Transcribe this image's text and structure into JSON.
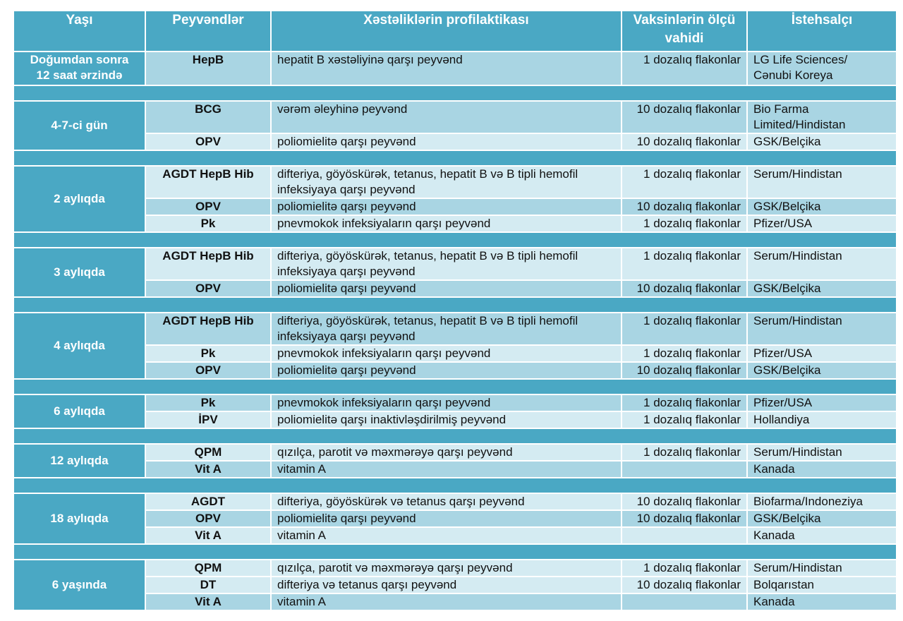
{
  "header": {
    "age": "Yaşı",
    "vaccines": "Peyvəndlər",
    "prophylaxis": "Xəstəliklərin profilaktikası",
    "unit_line1": "Vaksinlərin ölçü",
    "unit_line2": "vahidi",
    "maker": "İstehsalçı"
  },
  "groups": [
    {
      "age_line1": "Doğumdan sonra",
      "age_line2": "12 saat ərzində",
      "rows": [
        {
          "vaccine": "HepB",
          "desc_line1": "hepatit B xəstəliyinə qarşı peyvənd",
          "desc_line2": "",
          "unit": "1 dozalıq flakonlar",
          "maker_line1": "LG Life Sciences/",
          "maker_line2": "Cənubi Koreya"
        }
      ]
    },
    {
      "age_line1": "4-7-ci gün",
      "age_line2": "",
      "rows": [
        {
          "vaccine": "BCG",
          "desc_line1": "vərəm əleyhinə peyvənd",
          "desc_line2": "",
          "unit": "10 dozalıq flakonlar",
          "maker_line1": "Bio Farma",
          "maker_line2": "Limited/Hindistan"
        },
        {
          "vaccine": "OPV",
          "desc_line1": "poliomielitə qarşı peyvənd",
          "desc_line2": "",
          "unit": "10 dozalıq flakonlar",
          "maker_line1": "GSK/Belçika",
          "maker_line2": ""
        }
      ]
    },
    {
      "age_line1": "2 aylıqda",
      "age_line2": "",
      "rows": [
        {
          "vaccine": "AGDT HepB Hib",
          "desc_line1": "difteriya, göyöskürək, tetanus, hepatit  B  və B tipli hemofil",
          "desc_line2": "infeksiyaya qarşı  peyvənd",
          "unit": "1 dozalıq flakonlar",
          "maker_line1": "Serum/Hindistan",
          "maker_line2": ""
        },
        {
          "vaccine": "OPV",
          "desc_line1": "poliomielitə qarşı peyvənd",
          "desc_line2": "",
          "unit": "10 dozalıq flakonlar",
          "maker_line1": "GSK/Belçika",
          "maker_line2": ""
        },
        {
          "vaccine": "Pk",
          "desc_line1": "pnevmokok infeksiyaların qarşı  peyvənd",
          "desc_line2": "",
          "unit": "1 dozalıq flakonlar",
          "maker_line1": "Pfizer/USA",
          "maker_line2": ""
        }
      ]
    },
    {
      "age_line1": "3 aylıqda",
      "age_line2": "",
      "rows": [
        {
          "vaccine": "AGDT HepB Hib",
          "desc_line1": "difteriya, göyöskürək, tetanus, hepatit  B  və B tipli hemofil",
          "desc_line2": "infeksiyaya qarşı  peyvənd",
          "unit": "1 dozalıq flakonlar",
          "maker_line1": "Serum/Hindistan",
          "maker_line2": ""
        },
        {
          "vaccine": "OPV",
          "desc_line1": "poliomielitə qarşı peyvənd",
          "desc_line2": "",
          "unit": "10 dozalıq flakonlar",
          "maker_line1": "GSK/Belçika",
          "maker_line2": ""
        }
      ]
    },
    {
      "age_line1": "4 aylıqda",
      "age_line2": "",
      "rows": [
        {
          "vaccine": "AGDT HepB Hib",
          "desc_line1": "difteriya, göyöskürək, tetanus, hepatit  B   və B tipli hemofil",
          "desc_line2": "infeksiyaya qarşı  peyvənd",
          "unit": "1 dozalıq flakonlar",
          "maker_line1": "Serum/Hindistan",
          "maker_line2": ""
        },
        {
          "vaccine": "Pk",
          "desc_line1": "pnevmokok infeksiyaların qarşı  peyvənd",
          "desc_line2": "",
          "unit": "1 dozalıq flakonlar",
          "maker_line1": "Pfizer/USA",
          "maker_line2": ""
        },
        {
          "vaccine": "OPV",
          "desc_line1": "poliomielitə qarşı peyvənd",
          "desc_line2": "",
          "unit": "10 dozalıq flakonlar",
          "maker_line1": "GSK/Belçika",
          "maker_line2": ""
        }
      ]
    },
    {
      "age_line1": "6 aylıqda",
      "age_line2": "",
      "rows": [
        {
          "vaccine": "Pk",
          "desc_line1": "pnevmokok infeksiyaların qarşı  peyvənd",
          "desc_line2": "",
          "unit": "1 dozalıq flakonlar",
          "maker_line1": "Pfizer/USA",
          "maker_line2": ""
        },
        {
          "vaccine": "İPV",
          "desc_line1": "poliomielitə qarşı  inaktivləşdirilmiş peyvənd",
          "desc_line2": "",
          "unit": "1 dozalıq flakonlar",
          "maker_line1": "Hollandiya",
          "maker_line2": ""
        }
      ]
    },
    {
      "age_line1": "12 aylıqda",
      "age_line2": "",
      "rows": [
        {
          "vaccine": "QPM",
          "desc_line1": "qızılça, parotit və məxmərəyə qarşı   peyvənd",
          "desc_line2": "",
          "unit": "1 dozalıq flakonlar",
          "maker_line1": "Serum/Hindistan",
          "maker_line2": ""
        },
        {
          "vaccine": "Vit A",
          "desc_line1": "vitamin A",
          "desc_line2": "",
          "unit": "",
          "maker_line1": "Kanada",
          "maker_line2": ""
        }
      ]
    },
    {
      "age_line1": "18 aylıqda",
      "age_line2": "",
      "rows": [
        {
          "vaccine": "AGDT",
          "desc_line1": "difteriya, göyöskürək və tetanus  qarşı peyvənd",
          "desc_line2": "",
          "unit": "10 dozalıq flakonlar",
          "maker_line1": "Biofarma/Indoneziya",
          "maker_line2": ""
        },
        {
          "vaccine": "OPV",
          "desc_line1": "poliomielitə qarşı peyvənd",
          "desc_line2": "",
          "unit": "10 dozalıq flakonlar",
          "maker_line1": "GSK/Belçika",
          "maker_line2": ""
        },
        {
          "vaccine": "Vit A",
          "desc_line1": "vitamin A",
          "desc_line2": "",
          "unit": "",
          "maker_line1": "Kanada",
          "maker_line2": ""
        }
      ]
    },
    {
      "age_line1": "6 yaşında",
      "age_line2": "",
      "rows": [
        {
          "vaccine": "QPM",
          "desc_line1": "qızılça, parotit və məxmərəyə qarşı peyvənd",
          "desc_line2": "",
          "unit": "1 dozalıq flakonlar",
          "maker_line1": "Serum/Hindistan",
          "maker_line2": ""
        },
        {
          "vaccine": "DT",
          "desc_line1": "difteriya və tetanus qarşı  peyvənd",
          "desc_line2": "",
          "unit": "10 dozalıq flakonlar",
          "maker_line1": "Bolqarıstan",
          "maker_line2": ""
        },
        {
          "vaccine": "Vit A",
          "desc_line1": "vitamin A",
          "desc_line2": "",
          "unit": "",
          "maker_line1": "Kanada",
          "maker_line2": ""
        }
      ]
    }
  ]
}
